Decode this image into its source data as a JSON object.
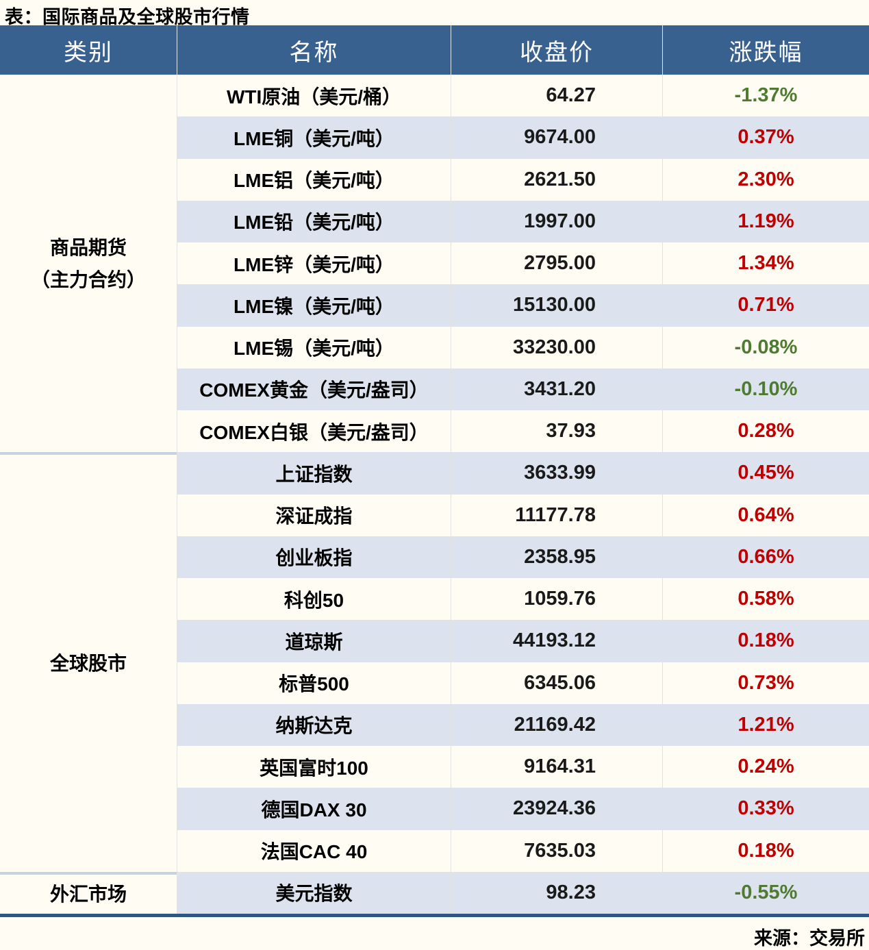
{
  "colors": {
    "page_background": "#FEFCF3",
    "header_background": "#39618F",
    "header_text": "#FFFFFF",
    "alt_row_background": "#DCE3EE",
    "up_red": "#C00000",
    "down_green": "#4E7B31",
    "group_separator": "#C6D2E0",
    "bottom_rule": "#2F5680"
  },
  "chart_data": {
    "type": "table",
    "title": "表：国际商品及全球股市行情",
    "source": "来源：交易所",
    "columns": [
      "类别",
      "名称",
      "收盘价",
      "涨跌幅"
    ],
    "groups": [
      {
        "line1": "商品期货",
        "line2": "（主力合约）",
        "row_span": 9
      },
      {
        "line1": "全球股市",
        "row_span": 10
      },
      {
        "line1": "外汇市场",
        "row_span": 1
      }
    ],
    "rows": [
      {
        "category": "商品期货（主力合约）",
        "name": "WTI原油（美元/桶）",
        "close": "64.27",
        "change": "-1.37%",
        "direction": "down"
      },
      {
        "category": "商品期货（主力合约）",
        "name": "LME铜（美元/吨）",
        "close": "9674.00",
        "change": "0.37%",
        "direction": "up"
      },
      {
        "category": "商品期货（主力合约）",
        "name": "LME铝（美元/吨）",
        "close": "2621.50",
        "change": "2.30%",
        "direction": "up"
      },
      {
        "category": "商品期货（主力合约）",
        "name": "LME铅（美元/吨）",
        "close": "1997.00",
        "change": "1.19%",
        "direction": "up"
      },
      {
        "category": "商品期货（主力合约）",
        "name": "LME锌（美元/吨）",
        "close": "2795.00",
        "change": "1.34%",
        "direction": "up"
      },
      {
        "category": "商品期货（主力合约）",
        "name": "LME镍（美元/吨）",
        "close": "15130.00",
        "change": "0.71%",
        "direction": "up"
      },
      {
        "category": "商品期货（主力合约）",
        "name": "LME锡（美元/吨）",
        "close": "33230.00",
        "change": "-0.08%",
        "direction": "down"
      },
      {
        "category": "商品期货（主力合约）",
        "name": "COMEX黄金（美元/盎司）",
        "close": "3431.20",
        "change": "-0.10%",
        "direction": "down"
      },
      {
        "category": "商品期货（主力合约）",
        "name": "COMEX白银（美元/盎司）",
        "close": "37.93",
        "change": "0.28%",
        "direction": "up"
      },
      {
        "category": "全球股市",
        "name": "上证指数",
        "close": "3633.99",
        "change": "0.45%",
        "direction": "up"
      },
      {
        "category": "全球股市",
        "name": "深证成指",
        "close": "11177.78",
        "change": "0.64%",
        "direction": "up"
      },
      {
        "category": "全球股市",
        "name": "创业板指",
        "close": "2358.95",
        "change": "0.66%",
        "direction": "up"
      },
      {
        "category": "全球股市",
        "name": "科创50",
        "close": "1059.76",
        "change": "0.58%",
        "direction": "up"
      },
      {
        "category": "全球股市",
        "name": "道琼斯",
        "close": "44193.12",
        "change": "0.18%",
        "direction": "up"
      },
      {
        "category": "全球股市",
        "name": "标普500",
        "close": "6345.06",
        "change": "0.73%",
        "direction": "up"
      },
      {
        "category": "全球股市",
        "name": "纳斯达克",
        "close": "21169.42",
        "change": "1.21%",
        "direction": "up"
      },
      {
        "category": "全球股市",
        "name": "英国富时100",
        "close": "9164.31",
        "change": "0.24%",
        "direction": "up"
      },
      {
        "category": "全球股市",
        "name": "德国DAX 30",
        "close": "23924.36",
        "change": "0.33%",
        "direction": "up"
      },
      {
        "category": "全球股市",
        "name": "法国CAC 40",
        "close": "7635.03",
        "change": "0.18%",
        "direction": "up"
      },
      {
        "category": "外汇市场",
        "name": "美元指数",
        "close": "98.23",
        "change": "-0.55%",
        "direction": "down"
      }
    ]
  }
}
